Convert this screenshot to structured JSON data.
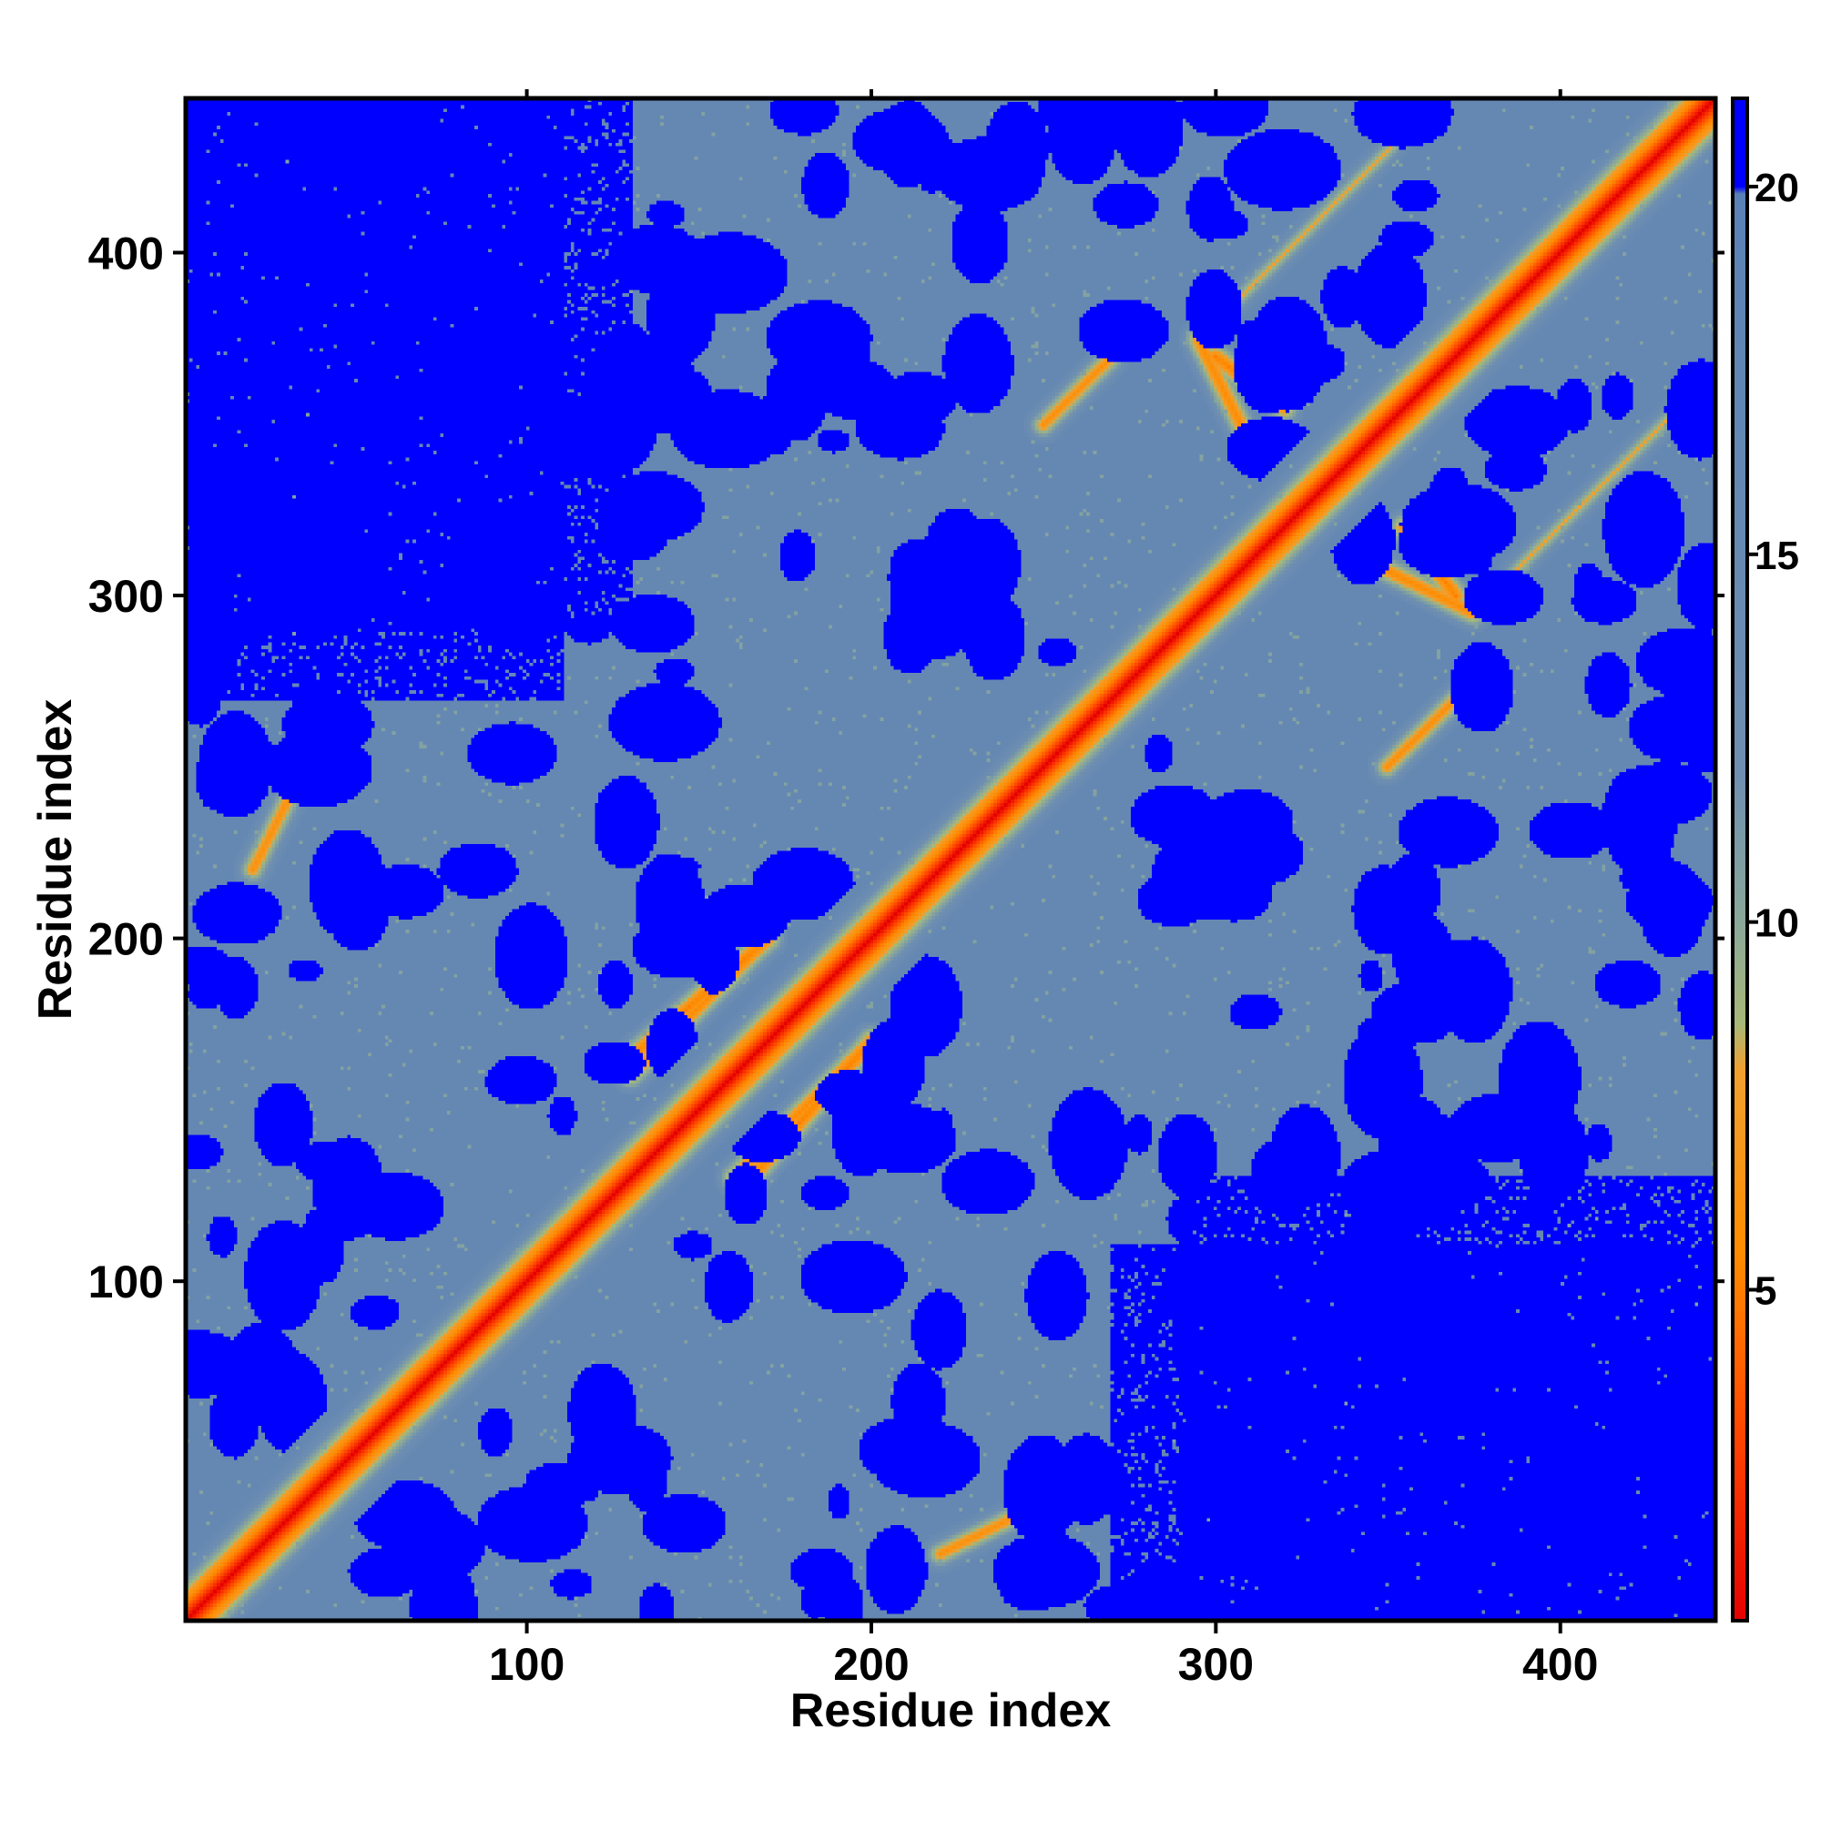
{
  "chart_data": {
    "type": "heatmap",
    "title": "",
    "xlabel": "Residue index",
    "ylabel": "Residue index",
    "n_residues": 445,
    "xlim": [
      1,
      445
    ],
    "ylim": [
      1,
      445
    ],
    "x_ticks": [
      100,
      200,
      300,
      400
    ],
    "y_ticks": [
      100,
      200,
      300,
      400
    ],
    "colorbar": {
      "range": [
        0.5,
        21.2
      ],
      "ticks": [
        5,
        10,
        15,
        20
      ],
      "stops": [
        {
          "value": 0.5,
          "color": "#e60000"
        },
        {
          "value": 3.0,
          "color": "#ff4400"
        },
        {
          "value": 5.5,
          "color": "#ff8c00"
        },
        {
          "value": 8.0,
          "color": "#f0a030"
        },
        {
          "value": 8.6,
          "color": "#a8b878"
        },
        {
          "value": 10.0,
          "color": "#8aa89a"
        },
        {
          "value": 12.0,
          "color": "#6f8fb0"
        },
        {
          "value": 19.9,
          "color": "#5b82b6"
        },
        {
          "value": 20.0,
          "color": "#0000ff"
        },
        {
          "value": 21.2,
          "color": "#0000ff"
        }
      ]
    },
    "blue_regions_description_free": [
      {
        "x": [
          1,
          130
        ],
        "y": [
          290,
          445
        ]
      },
      {
        "x": [
          270,
          445
        ],
        "y": [
          1,
          110
        ]
      }
    ],
    "contact_lines": [
      {
        "from": [
          1,
          1
        ],
        "to": [
          445,
          445
        ],
        "distance": 1.0
      },
      {
        "from": [
          55,
          60
        ],
        "to": [
          90,
          95
        ],
        "distance": 5.0
      },
      {
        "from": [
          130,
          165
        ],
        "to": [
          170,
          200
        ],
        "distance": 5.0
      },
      {
        "from": [
          160,
          130
        ],
        "to": [
          200,
          170
        ],
        "distance": 5.5
      },
      {
        "from": [
          300,
          370
        ],
        "to": [
          320,
          355
        ],
        "distance": 5.0
      },
      {
        "from": [
          345,
          310
        ],
        "to": [
          375,
          295
        ],
        "distance": 5.5
      },
      {
        "from": [
          350,
          250
        ],
        "to": [
          370,
          270
        ],
        "distance": 6.0
      },
      {
        "from": [
          20,
          220
        ],
        "to": [
          30,
          240
        ],
        "distance": 6.0
      },
      {
        "from": [
          380,
          300
        ],
        "to": [
          440,
          360
        ],
        "distance": 8.0
      }
    ]
  }
}
